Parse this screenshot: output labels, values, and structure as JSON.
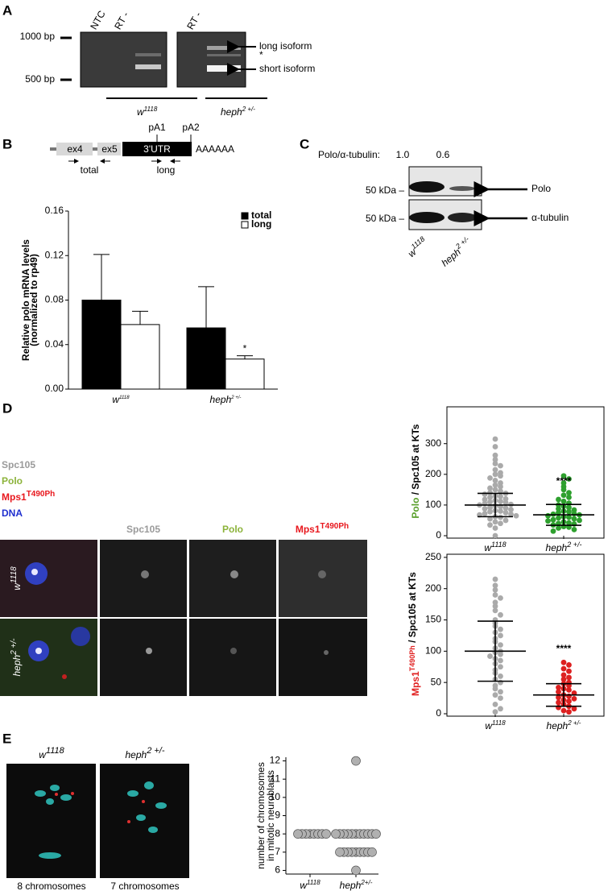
{
  "panels": {
    "A": {
      "label": "A",
      "size_markers": [
        "1000 bp",
        "500 bp"
      ],
      "lanes": [
        "NTC",
        "RT -",
        "RT -"
      ],
      "bands": [
        "long isoform",
        "*",
        "short isoform"
      ],
      "genotypes": [
        {
          "text": "w",
          "sup": "1118"
        },
        {
          "text": "heph",
          "sup": "2 +/-"
        }
      ]
    },
    "B": {
      "label": "B",
      "exons": [
        "ex4",
        "ex5",
        "3'UTR"
      ],
      "sites": [
        "pA1",
        "pA2"
      ],
      "polyA": "AAAAAA",
      "primers": [
        "total",
        "long"
      ]
    },
    "C": {
      "label": "C",
      "ratio_label": "Polo/α-tubulin:",
      "ratios": [
        "1.0",
        "0.6"
      ],
      "markers": [
        "50 kDa –",
        "50 kDa –"
      ],
      "proteins": [
        "Polo",
        "α-tubulin"
      ],
      "genotypes": [
        {
          "text": "w",
          "sup": "1118"
        },
        {
          "text": "heph",
          "sup": "2 +/-"
        }
      ]
    },
    "D": {
      "label": "D",
      "channels": [
        {
          "text": "Spc105"
        },
        {
          "text": "Polo"
        },
        {
          "text": "Mps1",
          "sup": "T490Ph"
        },
        {
          "text": "DNA"
        }
      ],
      "genotypes": [
        {
          "text": "w",
          "sup": "1118"
        },
        {
          "text": "heph",
          "sup": "2 +/-"
        }
      ]
    },
    "E": {
      "label": "E",
      "genotypes": [
        {
          "text": "w",
          "sup": "1118"
        },
        {
          "text": "heph",
          "sup": "2 +/-"
        }
      ],
      "captions": [
        "8 chromosomes",
        "7 chromosomes"
      ]
    }
  },
  "chart_data": [
    {
      "type": "bar",
      "ylabel": [
        "Relative polo mRNA levels",
        "(normalized to rp49)"
      ],
      "categories": [
        {
          "text": "w",
          "sup": "1118"
        },
        {
          "text": "heph",
          "sup": "2 +/-"
        }
      ],
      "series": [
        {
          "name": "total",
          "color": "#000000",
          "values": [
            0.08,
            0.055
          ],
          "errors": [
            0.041,
            0.037
          ]
        },
        {
          "name": "long",
          "color": "#ffffff",
          "values": [
            0.058,
            0.027
          ],
          "errors": [
            0.012,
            0.003
          ],
          "significance": [
            null,
            "*"
          ]
        }
      ],
      "ylim": [
        0,
        0.16
      ],
      "yticks": [
        {
          "value": 0,
          "label": "0.00"
        },
        {
          "value": 0.04,
          "label": "0.04"
        },
        {
          "value": 0.08,
          "label": "0.08"
        },
        {
          "value": 0.12,
          "label": "0.12"
        },
        {
          "value": 0.16,
          "label": "0.16"
        }
      ]
    },
    {
      "type": "strip",
      "ylabel": [
        {
          "text": "Polo",
          "color": "#5aa02c"
        },
        {
          "text": " / Spc105 at KTs"
        }
      ],
      "categories": [
        {
          "text": "w",
          "sup": "1118"
        },
        {
          "text": "heph",
          "sup": "2 +/-"
        }
      ],
      "groups": [
        {
          "color": "#aaaaaa",
          "mean": 100,
          "sd": 38,
          "values": [
            315,
            290,
            262,
            248,
            235,
            228,
            215,
            205,
            200,
            195,
            188,
            180,
            172,
            165,
            160,
            155,
            150,
            145,
            140,
            138,
            135,
            130,
            128,
            125,
            120,
            118,
            115,
            112,
            110,
            108,
            105,
            102,
            100,
            98,
            95,
            92,
            90,
            88,
            85,
            82,
            80,
            78,
            75,
            72,
            70,
            68,
            65,
            62,
            60,
            55,
            50,
            45,
            40,
            35,
            25,
            0
          ]
        },
        {
          "color": "#2ea02e",
          "mean": 68,
          "sd": 34,
          "significance": "****",
          "values": [
            195,
            185,
            172,
            160,
            150,
            140,
            132,
            125,
            118,
            112,
            106,
            100,
            96,
            92,
            88,
            84,
            80,
            78,
            75,
            72,
            70,
            68,
            65,
            62,
            60,
            58,
            55,
            52,
            50,
            48,
            45,
            42,
            40,
            38,
            35,
            30,
            28,
            25,
            20,
            15
          ]
        }
      ],
      "ylim": [
        0,
        420
      ],
      "yticks": [
        0,
        100,
        200,
        300
      ]
    },
    {
      "type": "strip",
      "ylabel": [
        {
          "text": "Mps1",
          "color": "#e02020",
          "sup": "T490Ph"
        },
        {
          "text": " / Spc105 at KTs"
        }
      ],
      "categories": [
        {
          "text": "w",
          "sup": "1118"
        },
        {
          "text": "heph",
          "sup": "2 +/-"
        }
      ],
      "groups": [
        {
          "color": "#aaaaaa",
          "mean": 100,
          "sd": 48,
          "values": [
            215,
            205,
            198,
            190,
            185,
            178,
            172,
            165,
            158,
            150,
            145,
            140,
            135,
            130,
            125,
            120,
            115,
            110,
            105,
            100,
            98,
            95,
            92,
            88,
            85,
            80,
            75,
            70,
            65,
            60,
            55,
            50,
            45,
            40,
            35,
            30,
            25,
            15,
            8,
            3
          ]
        },
        {
          "color": "#dd2020",
          "mean": 30,
          "sd": 18,
          "significance": "****",
          "values": [
            82,
            78,
            72,
            68,
            62,
            58,
            55,
            50,
            48,
            45,
            42,
            40,
            38,
            35,
            33,
            30,
            28,
            26,
            24,
            22,
            20,
            18,
            15,
            12,
            10,
            8,
            5,
            3
          ]
        }
      ],
      "ylim": [
        0,
        255
      ],
      "yticks": [
        0,
        50,
        100,
        150,
        200,
        250
      ]
    },
    {
      "type": "strip",
      "ylabel": [
        {
          "text": "number of chromosomes"
        },
        {
          "text": "in mitotic neuroblasts"
        }
      ],
      "categories": [
        {
          "text": "w",
          "sup": "1118"
        },
        {
          "text": "heph",
          "sup": "2+/-"
        }
      ],
      "groups": [
        {
          "color": "#b0b0b0",
          "values": [
            8,
            8,
            8,
            8,
            8,
            8,
            8,
            8
          ]
        },
        {
          "color": "#b0b0b0",
          "values": [
            12,
            8,
            8,
            8,
            8,
            8,
            8,
            8,
            8,
            8,
            8,
            8,
            7,
            7,
            7,
            7,
            7,
            7,
            7,
            7,
            7,
            6
          ]
        }
      ],
      "ylim": [
        5.8,
        12.2
      ],
      "yticks": [
        6,
        7,
        8,
        9,
        10,
        11,
        12
      ]
    }
  ]
}
